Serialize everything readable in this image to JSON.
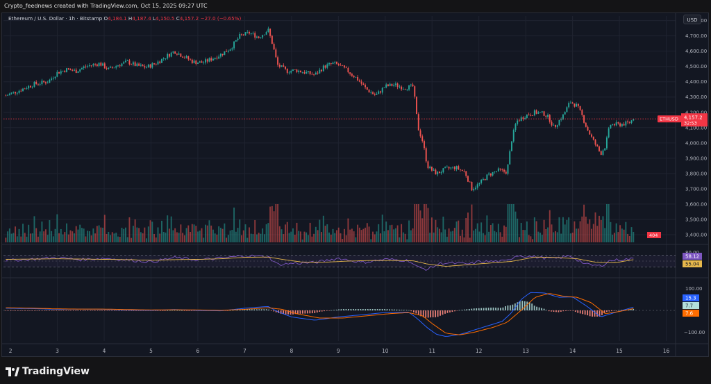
{
  "header": {
    "credit": "Crypto_feednews created with TradingView.com, Oct 15, 2025 09:27 UTC"
  },
  "legend": {
    "symbol": "Ethereum / U.S. Dollar · 1h · Bitstamp",
    "o_label": "O",
    "o": "4,184.1",
    "h_label": "H",
    "h": "4,187.4",
    "l_label": "L",
    "l": "4,150.5",
    "c_label": "C",
    "c": "4,157.2",
    "change": "−27.0 (−0.65%)"
  },
  "toolbar": {
    "currency": "USD"
  },
  "footer": {
    "brand": "TradingView"
  },
  "colors": {
    "up": "#26a69a",
    "down": "#ef5350",
    "rsi_line": "#7e57c2",
    "rsi_ma": "#e6b84c",
    "macd_line": "#2962ff",
    "signal_line": "#ff6d00",
    "price_tag": "#f23645"
  },
  "chart_data": [
    {
      "type": "candlestick",
      "pair": "ETHUSD",
      "ylim": [
        3350,
        4830
      ],
      "y_ticks": [
        "4,800.00",
        "4,700.00",
        "4,600.00",
        "4,500.00",
        "4,400.00",
        "4,300.00",
        "4,200.00",
        "4,100.00",
        "4,000.00",
        "3,900.00",
        "3,800.00",
        "3,700.00",
        "3,600.00",
        "3,500.00",
        "3,400.00"
      ],
      "x_ticks": [
        "2",
        "3",
        "4",
        "5",
        "6",
        "7",
        "8",
        "9",
        "10",
        "11",
        "12",
        "13",
        "14",
        "15",
        "16"
      ],
      "x_range_days": [
        1.85,
        16.2
      ],
      "last_price_label": "ETHUSD",
      "last_price": "4,157.2",
      "countdown": "32:53",
      "last_price_value": 4157.2,
      "volume_label": "404",
      "price_path": [
        [
          1.9,
          4310
        ],
        [
          2.2,
          4345
        ],
        [
          2.5,
          4385
        ],
        [
          2.8,
          4400
        ],
        [
          3.0,
          4460
        ],
        [
          3.2,
          4480
        ],
        [
          3.4,
          4470
        ],
        [
          3.6,
          4500
        ],
        [
          3.9,
          4520
        ],
        [
          4.1,
          4480
        ],
        [
          4.3,
          4510
        ],
        [
          4.5,
          4530
        ],
        [
          4.7,
          4505
        ],
        [
          4.9,
          4495
        ],
        [
          5.1,
          4520
        ],
        [
          5.3,
          4560
        ],
        [
          5.5,
          4600
        ],
        [
          5.7,
          4565
        ],
        [
          5.9,
          4530
        ],
        [
          6.1,
          4525
        ],
        [
          6.3,
          4550
        ],
        [
          6.5,
          4580
        ],
        [
          6.7,
          4620
        ],
        [
          6.9,
          4700
        ],
        [
          7.1,
          4720
        ],
        [
          7.3,
          4690
        ],
        [
          7.5,
          4740
        ],
        [
          7.6,
          4640
        ],
        [
          7.7,
          4510
        ],
        [
          7.9,
          4470
        ],
        [
          8.1,
          4475
        ],
        [
          8.3,
          4460
        ],
        [
          8.5,
          4445
        ],
        [
          8.7,
          4500
        ],
        [
          8.9,
          4520
        ],
        [
          9.0,
          4510
        ],
        [
          9.2,
          4470
        ],
        [
          9.4,
          4420
        ],
        [
          9.6,
          4350
        ],
        [
          9.8,
          4310
        ],
        [
          10.0,
          4370
        ],
        [
          10.2,
          4380
        ],
        [
          10.4,
          4360
        ],
        [
          10.6,
          4370
        ],
        [
          10.7,
          4100
        ],
        [
          10.8,
          4010
        ],
        [
          10.9,
          3850
        ],
        [
          11.0,
          3820
        ],
        [
          11.1,
          3800
        ],
        [
          11.3,
          3830
        ],
        [
          11.5,
          3840
        ],
        [
          11.7,
          3810
        ],
        [
          11.85,
          3700
        ],
        [
          12.0,
          3730
        ],
        [
          12.2,
          3790
        ],
        [
          12.4,
          3820
        ],
        [
          12.6,
          3810
        ],
        [
          12.7,
          4020
        ],
        [
          12.8,
          4140
        ],
        [
          13.0,
          4180
        ],
        [
          13.2,
          4200
        ],
        [
          13.4,
          4190
        ],
        [
          13.5,
          4160
        ],
        [
          13.6,
          4100
        ],
        [
          13.8,
          4180
        ],
        [
          13.95,
          4270
        ],
        [
          14.1,
          4240
        ],
        [
          14.2,
          4180
        ],
        [
          14.3,
          4100
        ],
        [
          14.45,
          4010
        ],
        [
          14.6,
          3930
        ],
        [
          14.7,
          3980
        ],
        [
          14.8,
          4120
        ],
        [
          15.0,
          4120
        ],
        [
          15.2,
          4130
        ],
        [
          15.3,
          4157
        ]
      ]
    },
    {
      "type": "line",
      "name": "RSI",
      "ylim": [
        0,
        100
      ],
      "y_ticks": [
        "80.00"
      ],
      "value_labels": [
        "58.12",
        "55.04"
      ],
      "rsi_points": [
        [
          1.9,
          52
        ],
        [
          2.5,
          57
        ],
        [
          3.0,
          62
        ],
        [
          3.5,
          55
        ],
        [
          4.0,
          60
        ],
        [
          4.5,
          54
        ],
        [
          5.0,
          47
        ],
        [
          5.5,
          62
        ],
        [
          6.0,
          54
        ],
        [
          6.5,
          60
        ],
        [
          7.0,
          68
        ],
        [
          7.5,
          66
        ],
        [
          7.7,
          38
        ],
        [
          8.0,
          42
        ],
        [
          8.5,
          45
        ],
        [
          9.0,
          60
        ],
        [
          9.5,
          45
        ],
        [
          10.0,
          56
        ],
        [
          10.5,
          52
        ],
        [
          10.7,
          28
        ],
        [
          10.9,
          22
        ],
        [
          11.2,
          44
        ],
        [
          11.8,
          40
        ],
        [
          12.0,
          48
        ],
        [
          12.6,
          50
        ],
        [
          12.8,
          70
        ],
        [
          13.2,
          64
        ],
        [
          13.6,
          58
        ],
        [
          13.95,
          68
        ],
        [
          14.3,
          38
        ],
        [
          14.6,
          33
        ],
        [
          14.8,
          52
        ],
        [
          15.3,
          58
        ]
      ],
      "ma_points": [
        [
          1.9,
          56
        ],
        [
          2.5,
          57
        ],
        [
          3.0,
          58
        ],
        [
          3.5,
          57
        ],
        [
          4.0,
          56
        ],
        [
          4.5,
          55
        ],
        [
          5.0,
          53
        ],
        [
          5.5,
          55
        ],
        [
          6.0,
          56
        ],
        [
          6.5,
          58
        ],
        [
          7.0,
          63
        ],
        [
          7.5,
          64
        ],
        [
          7.8,
          56
        ],
        [
          8.2,
          47
        ],
        [
          8.7,
          46
        ],
        [
          9.2,
          50
        ],
        [
          9.7,
          52
        ],
        [
          10.2,
          52
        ],
        [
          10.6,
          51
        ],
        [
          10.9,
          40
        ],
        [
          11.3,
          32
        ],
        [
          11.8,
          38
        ],
        [
          12.3,
          44
        ],
        [
          12.7,
          49
        ],
        [
          13.2,
          64
        ],
        [
          13.7,
          62
        ],
        [
          14.1,
          58
        ],
        [
          14.5,
          46
        ],
        [
          14.9,
          44
        ],
        [
          15.3,
          55
        ]
      ]
    },
    {
      "type": "line",
      "name": "MACD",
      "ylim": [
        -140,
        140
      ],
      "y_ticks": [
        "100.00",
        "−100.00"
      ],
      "value_labels": [
        "15.3",
        "7.7",
        "7.6"
      ],
      "macd_points": [
        [
          1.9,
          10
        ],
        [
          2.5,
          8
        ],
        [
          3.0,
          5
        ],
        [
          3.5,
          6
        ],
        [
          4.0,
          5
        ],
        [
          4.5,
          2
        ],
        [
          5.0,
          0
        ],
        [
          5.5,
          4
        ],
        [
          6.0,
          0
        ],
        [
          6.5,
          -2
        ],
        [
          7.0,
          10
        ],
        [
          7.5,
          18
        ],
        [
          7.7,
          -5
        ],
        [
          8.0,
          -30
        ],
        [
          8.5,
          -45
        ],
        [
          9.0,
          -30
        ],
        [
          9.5,
          -20
        ],
        [
          10.0,
          -10
        ],
        [
          10.5,
          -8
        ],
        [
          10.7,
          -40
        ],
        [
          10.9,
          -80
        ],
        [
          11.1,
          -110
        ],
        [
          11.3,
          -120
        ],
        [
          11.6,
          -110
        ],
        [
          11.9,
          -90
        ],
        [
          12.2,
          -70
        ],
        [
          12.5,
          -50
        ],
        [
          12.7,
          -10
        ],
        [
          12.9,
          50
        ],
        [
          13.1,
          82
        ],
        [
          13.4,
          80
        ],
        [
          13.7,
          60
        ],
        [
          14.0,
          62
        ],
        [
          14.3,
          20
        ],
        [
          14.6,
          -30
        ],
        [
          14.9,
          -10
        ],
        [
          15.3,
          15
        ]
      ],
      "signal_points": [
        [
          1.9,
          12
        ],
        [
          2.5,
          10
        ],
        [
          3.0,
          7
        ],
        [
          3.5,
          6
        ],
        [
          4.0,
          6
        ],
        [
          4.5,
          4
        ],
        [
          5.0,
          2
        ],
        [
          5.5,
          3
        ],
        [
          6.0,
          2
        ],
        [
          6.5,
          0
        ],
        [
          7.0,
          5
        ],
        [
          7.5,
          12
        ],
        [
          7.8,
          5
        ],
        [
          8.1,
          -15
        ],
        [
          8.6,
          -35
        ],
        [
          9.1,
          -35
        ],
        [
          9.6,
          -25
        ],
        [
          10.1,
          -15
        ],
        [
          10.5,
          -10
        ],
        [
          10.8,
          -25
        ],
        [
          11.0,
          -60
        ],
        [
          11.3,
          -105
        ],
        [
          11.6,
          -112
        ],
        [
          11.9,
          -100
        ],
        [
          12.3,
          -78
        ],
        [
          12.6,
          -55
        ],
        [
          12.9,
          0
        ],
        [
          13.2,
          60
        ],
        [
          13.5,
          78
        ],
        [
          13.8,
          65
        ],
        [
          14.1,
          60
        ],
        [
          14.4,
          35
        ],
        [
          14.7,
          -15
        ],
        [
          15.0,
          -5
        ],
        [
          15.3,
          8
        ]
      ]
    }
  ]
}
